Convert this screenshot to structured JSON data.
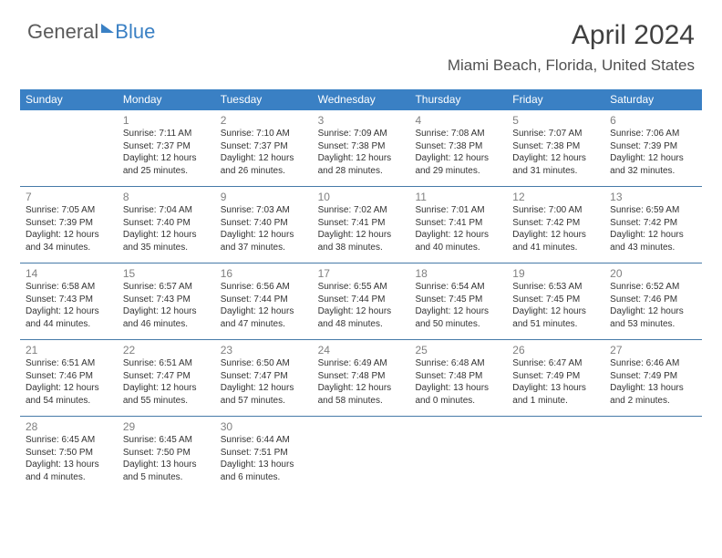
{
  "logo": {
    "text1": "General",
    "text2": "Blue"
  },
  "title": "April 2024",
  "subtitle": "Miami Beach, Florida, United States",
  "colors": {
    "header_bg": "#3a80c4",
    "header_text": "#ffffff",
    "border": "#467aa8",
    "daynum": "#808080",
    "body_text": "#333333",
    "page_bg": "#ffffff"
  },
  "fontsizes": {
    "title": 30,
    "subtitle": 17,
    "header": 12,
    "daynum": 12,
    "info": 10
  },
  "weekdays": [
    "Sunday",
    "Monday",
    "Tuesday",
    "Wednesday",
    "Thursday",
    "Friday",
    "Saturday"
  ],
  "weeks": [
    [
      null,
      {
        "n": "1",
        "sr": "Sunrise: 7:11 AM",
        "ss": "Sunset: 7:37 PM",
        "d1": "Daylight: 12 hours",
        "d2": "and 25 minutes."
      },
      {
        "n": "2",
        "sr": "Sunrise: 7:10 AM",
        "ss": "Sunset: 7:37 PM",
        "d1": "Daylight: 12 hours",
        "d2": "and 26 minutes."
      },
      {
        "n": "3",
        "sr": "Sunrise: 7:09 AM",
        "ss": "Sunset: 7:38 PM",
        "d1": "Daylight: 12 hours",
        "d2": "and 28 minutes."
      },
      {
        "n": "4",
        "sr": "Sunrise: 7:08 AM",
        "ss": "Sunset: 7:38 PM",
        "d1": "Daylight: 12 hours",
        "d2": "and 29 minutes."
      },
      {
        "n": "5",
        "sr": "Sunrise: 7:07 AM",
        "ss": "Sunset: 7:38 PM",
        "d1": "Daylight: 12 hours",
        "d2": "and 31 minutes."
      },
      {
        "n": "6",
        "sr": "Sunrise: 7:06 AM",
        "ss": "Sunset: 7:39 PM",
        "d1": "Daylight: 12 hours",
        "d2": "and 32 minutes."
      }
    ],
    [
      {
        "n": "7",
        "sr": "Sunrise: 7:05 AM",
        "ss": "Sunset: 7:39 PM",
        "d1": "Daylight: 12 hours",
        "d2": "and 34 minutes."
      },
      {
        "n": "8",
        "sr": "Sunrise: 7:04 AM",
        "ss": "Sunset: 7:40 PM",
        "d1": "Daylight: 12 hours",
        "d2": "and 35 minutes."
      },
      {
        "n": "9",
        "sr": "Sunrise: 7:03 AM",
        "ss": "Sunset: 7:40 PM",
        "d1": "Daylight: 12 hours",
        "d2": "and 37 minutes."
      },
      {
        "n": "10",
        "sr": "Sunrise: 7:02 AM",
        "ss": "Sunset: 7:41 PM",
        "d1": "Daylight: 12 hours",
        "d2": "and 38 minutes."
      },
      {
        "n": "11",
        "sr": "Sunrise: 7:01 AM",
        "ss": "Sunset: 7:41 PM",
        "d1": "Daylight: 12 hours",
        "d2": "and 40 minutes."
      },
      {
        "n": "12",
        "sr": "Sunrise: 7:00 AM",
        "ss": "Sunset: 7:42 PM",
        "d1": "Daylight: 12 hours",
        "d2": "and 41 minutes."
      },
      {
        "n": "13",
        "sr": "Sunrise: 6:59 AM",
        "ss": "Sunset: 7:42 PM",
        "d1": "Daylight: 12 hours",
        "d2": "and 43 minutes."
      }
    ],
    [
      {
        "n": "14",
        "sr": "Sunrise: 6:58 AM",
        "ss": "Sunset: 7:43 PM",
        "d1": "Daylight: 12 hours",
        "d2": "and 44 minutes."
      },
      {
        "n": "15",
        "sr": "Sunrise: 6:57 AM",
        "ss": "Sunset: 7:43 PM",
        "d1": "Daylight: 12 hours",
        "d2": "and 46 minutes."
      },
      {
        "n": "16",
        "sr": "Sunrise: 6:56 AM",
        "ss": "Sunset: 7:44 PM",
        "d1": "Daylight: 12 hours",
        "d2": "and 47 minutes."
      },
      {
        "n": "17",
        "sr": "Sunrise: 6:55 AM",
        "ss": "Sunset: 7:44 PM",
        "d1": "Daylight: 12 hours",
        "d2": "and 48 minutes."
      },
      {
        "n": "18",
        "sr": "Sunrise: 6:54 AM",
        "ss": "Sunset: 7:45 PM",
        "d1": "Daylight: 12 hours",
        "d2": "and 50 minutes."
      },
      {
        "n": "19",
        "sr": "Sunrise: 6:53 AM",
        "ss": "Sunset: 7:45 PM",
        "d1": "Daylight: 12 hours",
        "d2": "and 51 minutes."
      },
      {
        "n": "20",
        "sr": "Sunrise: 6:52 AM",
        "ss": "Sunset: 7:46 PM",
        "d1": "Daylight: 12 hours",
        "d2": "and 53 minutes."
      }
    ],
    [
      {
        "n": "21",
        "sr": "Sunrise: 6:51 AM",
        "ss": "Sunset: 7:46 PM",
        "d1": "Daylight: 12 hours",
        "d2": "and 54 minutes."
      },
      {
        "n": "22",
        "sr": "Sunrise: 6:51 AM",
        "ss": "Sunset: 7:47 PM",
        "d1": "Daylight: 12 hours",
        "d2": "and 55 minutes."
      },
      {
        "n": "23",
        "sr": "Sunrise: 6:50 AM",
        "ss": "Sunset: 7:47 PM",
        "d1": "Daylight: 12 hours",
        "d2": "and 57 minutes."
      },
      {
        "n": "24",
        "sr": "Sunrise: 6:49 AM",
        "ss": "Sunset: 7:48 PM",
        "d1": "Daylight: 12 hours",
        "d2": "and 58 minutes."
      },
      {
        "n": "25",
        "sr": "Sunrise: 6:48 AM",
        "ss": "Sunset: 7:48 PM",
        "d1": "Daylight: 13 hours",
        "d2": "and 0 minutes."
      },
      {
        "n": "26",
        "sr": "Sunrise: 6:47 AM",
        "ss": "Sunset: 7:49 PM",
        "d1": "Daylight: 13 hours",
        "d2": "and 1 minute."
      },
      {
        "n": "27",
        "sr": "Sunrise: 6:46 AM",
        "ss": "Sunset: 7:49 PM",
        "d1": "Daylight: 13 hours",
        "d2": "and 2 minutes."
      }
    ],
    [
      {
        "n": "28",
        "sr": "Sunrise: 6:45 AM",
        "ss": "Sunset: 7:50 PM",
        "d1": "Daylight: 13 hours",
        "d2": "and 4 minutes."
      },
      {
        "n": "29",
        "sr": "Sunrise: 6:45 AM",
        "ss": "Sunset: 7:50 PM",
        "d1": "Daylight: 13 hours",
        "d2": "and 5 minutes."
      },
      {
        "n": "30",
        "sr": "Sunrise: 6:44 AM",
        "ss": "Sunset: 7:51 PM",
        "d1": "Daylight: 13 hours",
        "d2": "and 6 minutes."
      },
      null,
      null,
      null,
      null
    ]
  ]
}
